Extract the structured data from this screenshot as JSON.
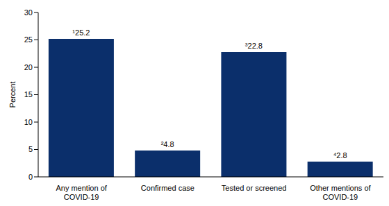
{
  "chart_data": {
    "type": "bar",
    "y_label": "Percent",
    "categories": [
      "Any mention of COVID-19",
      "Confirmed case",
      "Tested or screened",
      "Other mentions of COVID-19"
    ],
    "values": [
      25.2,
      4.8,
      22.8,
      2.8
    ],
    "value_labels": [
      "¹25.2",
      "²4.8",
      "³22.8",
      "⁴2.8"
    ],
    "data_labels": true,
    "color": "#0b2f6b",
    "ylim": [
      0,
      30
    ],
    "yticks": [
      0,
      5,
      10,
      15,
      20,
      25,
      30
    ],
    "grid": false
  }
}
